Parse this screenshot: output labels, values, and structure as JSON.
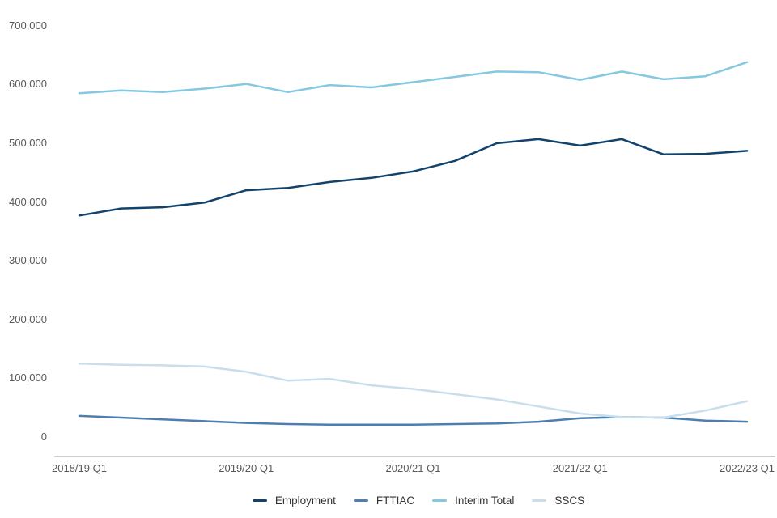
{
  "page": {
    "background": "#ffffff",
    "axis_line_color": "#cccccc",
    "axis_text_color": "#595959",
    "legend_text_color": "#333333"
  },
  "chart_data": {
    "type": "line",
    "title": "",
    "xlabel": "",
    "ylabel": "",
    "grid": false,
    "legend_position": "bottom",
    "ylim": [
      0,
      700000
    ],
    "x": [
      "2018/19 Q1",
      "2018/19 Q2",
      "2018/19 Q3",
      "2018/19 Q4",
      "2019/20 Q1",
      "2019/20 Q2",
      "2019/20 Q3",
      "2019/20 Q4",
      "2020/21 Q1",
      "2020/21 Q2",
      "2020/21 Q3",
      "2020/21 Q4",
      "2021/22 Q1",
      "2021/22 Q2",
      "2021/22 Q3",
      "2021/22 Q4",
      "2022/23 Q1"
    ],
    "x_axis_tick_indices": [
      0,
      4,
      8,
      12,
      16
    ],
    "x_axis_tick_labels": [
      "2018/19 Q1",
      "2019/20 Q1",
      "2020/21 Q1",
      "2021/22 Q1",
      "2022/23 Q1"
    ],
    "y_ticks": [
      {
        "value": 0,
        "label": "0"
      },
      {
        "value": 100000,
        "label": "100,000"
      },
      {
        "value": 200000,
        "label": "200,000"
      },
      {
        "value": 300000,
        "label": "300,000"
      },
      {
        "value": 400000,
        "label": "400,000"
      },
      {
        "value": 500000,
        "label": "500,000"
      },
      {
        "value": 600000,
        "label": "600,000"
      },
      {
        "value": 700000,
        "label": "700,000"
      }
    ],
    "series": [
      {
        "name": "Employment",
        "color": "#12436d",
        "values": [
          377000,
          389000,
          391000,
          399000,
          420000,
          424000,
          434000,
          441000,
          452000,
          470000,
          500000,
          507000,
          496000,
          507000,
          481000,
          482000,
          487000
        ]
      },
      {
        "name": "FTTIAC",
        "color": "#4d7eb0",
        "values": [
          36000,
          33000,
          30000,
          27000,
          24000,
          22000,
          21000,
          21000,
          21000,
          22000,
          23000,
          26000,
          32000,
          34000,
          33000,
          28000,
          26000
        ]
      },
      {
        "name": "Interim Total",
        "color": "#85c8e2",
        "values": [
          585000,
          590000,
          587000,
          593000,
          601000,
          587000,
          599000,
          595000,
          604000,
          613000,
          622000,
          621000,
          608000,
          622000,
          609000,
          614000,
          638000
        ]
      },
      {
        "name": "SSCS",
        "color": "#c8dfeb",
        "values": [
          125000,
          123000,
          122000,
          120000,
          111000,
          96000,
          99000,
          88000,
          82000,
          73000,
          64000,
          52000,
          40000,
          34000,
          33000,
          45000,
          61000
        ]
      }
    ]
  }
}
